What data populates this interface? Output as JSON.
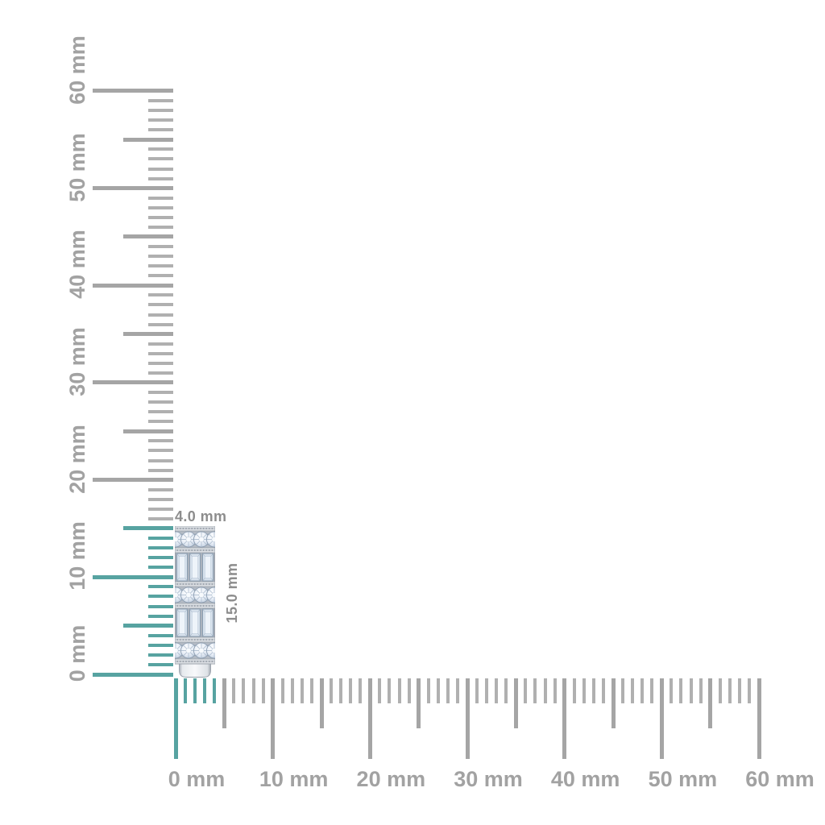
{
  "scene": {
    "description": "Diamond eternity band side view measured against millimeter rulers",
    "background": "#ffffff"
  },
  "product": {
    "name": "diamond-band-side-view",
    "stone_pattern": [
      "round",
      "baguette",
      "round",
      "baguette",
      "round"
    ],
    "metal": "white"
  },
  "dimensions": {
    "width_label": "4.0 mm",
    "height_label": "15.0 mm"
  },
  "rulers": {
    "unit": "mm",
    "vertical": {
      "min": 0,
      "max": 60,
      "minor_step": 1,
      "medium_step": 5,
      "major_step": 10,
      "label_step": 10,
      "labels": [
        "0 mm",
        "10 mm",
        "20 mm",
        "30 mm",
        "40 mm",
        "50 mm",
        "60 mm"
      ],
      "highlight_to_mm": 15
    },
    "horizontal": {
      "min": 0,
      "max": 60,
      "minor_step": 1,
      "medium_step": 5,
      "major_step": 10,
      "label_step": 10,
      "labels": [
        "0 mm",
        "10 mm",
        "20 mm",
        "30 mm",
        "40 mm",
        "50 mm",
        "60 mm"
      ],
      "highlight_to_mm": 4
    }
  },
  "colors": {
    "background": "#ffffff",
    "highlight_teal": "#57a3a1",
    "tick_gray": "#b0b0b0",
    "tick_gray_major": "#a5a5a5",
    "ruler_label_gray": "#a2a2a2",
    "dimension_label_gray": "#8d8d8d"
  }
}
